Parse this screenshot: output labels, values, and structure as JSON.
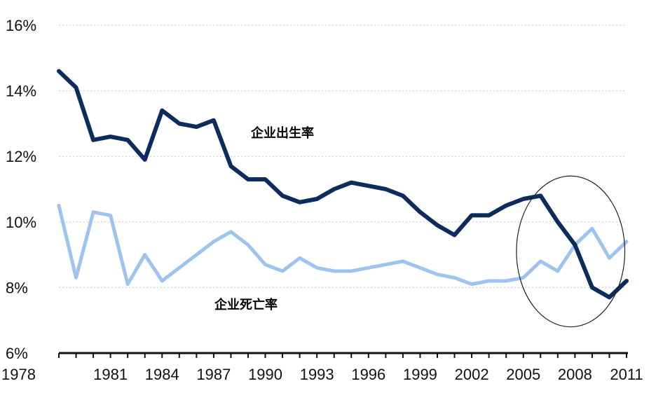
{
  "chart_data": {
    "type": "line",
    "title": "",
    "xlabel": "",
    "ylabel": "",
    "ylim": [
      6,
      16
    ],
    "xlim": [
      1978,
      2011
    ],
    "grid": true,
    "y_ticks": [
      6,
      8,
      10,
      12,
      14,
      16
    ],
    "y_tick_labels": [
      "6%",
      "8%",
      "10%",
      "12%",
      "14%",
      "16%"
    ],
    "x_ticks": [
      1978,
      1981,
      1984,
      1987,
      1990,
      1993,
      1996,
      1999,
      2002,
      2005,
      2008,
      2011
    ],
    "x_tick_labels": [
      "1978",
      "1981",
      "1984",
      "1987",
      "1990",
      "1993",
      "1996",
      "1999",
      "2002",
      "2005",
      "2008",
      "2011"
    ],
    "x": [
      1978,
      1979,
      1980,
      1981,
      1982,
      1983,
      1984,
      1985,
      1986,
      1987,
      1988,
      1989,
      1990,
      1991,
      1992,
      1993,
      1994,
      1995,
      1996,
      1997,
      1998,
      1999,
      2000,
      2001,
      2002,
      2003,
      2004,
      2005,
      2006,
      2007,
      2008,
      2009,
      2010,
      2011
    ],
    "series": [
      {
        "name": "企业出生率",
        "color": "#0d2c5e",
        "values": [
          14.6,
          14.1,
          12.5,
          12.6,
          12.5,
          11.9,
          13.4,
          13.0,
          12.9,
          13.1,
          11.7,
          11.3,
          11.3,
          10.8,
          10.6,
          10.7,
          11.0,
          11.2,
          11.1,
          11.0,
          10.8,
          10.3,
          9.9,
          9.6,
          10.2,
          10.2,
          10.5,
          10.7,
          10.8,
          10.0,
          9.3,
          8.0,
          7.7,
          8.2
        ]
      },
      {
        "name": "企业死亡率",
        "color": "#9dc3ee",
        "values": [
          10.5,
          8.3,
          10.3,
          10.2,
          8.1,
          9.0,
          8.2,
          8.6,
          9.0,
          9.4,
          9.7,
          9.3,
          8.7,
          8.5,
          8.9,
          8.6,
          8.5,
          8.5,
          8.6,
          8.7,
          8.8,
          8.6,
          8.4,
          8.3,
          8.1,
          8.2,
          8.2,
          8.3,
          8.8,
          8.5,
          9.3,
          9.8,
          8.9,
          9.4
        ]
      }
    ],
    "annotations": [
      {
        "type": "ellipse",
        "label": "",
        "x_range": [
          2004.6,
          2010.9
        ],
        "y_range": [
          6.8,
          11.4
        ]
      }
    ]
  }
}
